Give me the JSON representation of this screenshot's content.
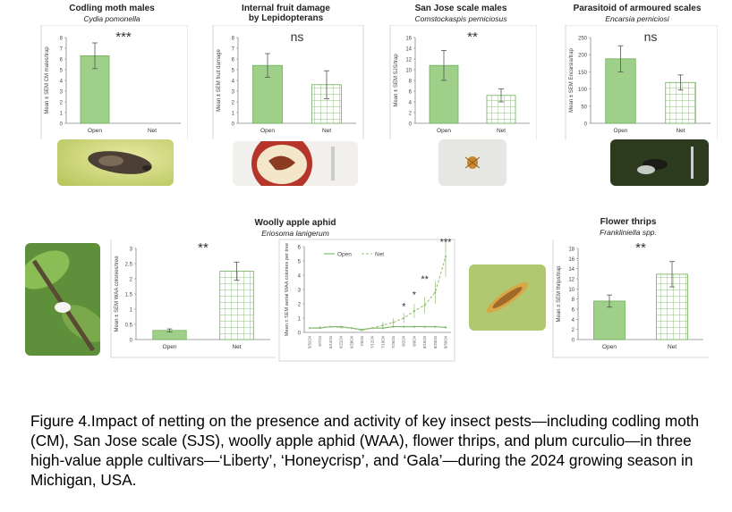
{
  "colors": {
    "open": "#9fd08a",
    "net_fill": "#ffffff",
    "net_grid": "#8cc47a",
    "border": "#6fae5b",
    "axis": "#888888"
  },
  "panels": {
    "codling": {
      "title": "Codling moth males",
      "subtitle": "Cydia pomonella",
      "sig": "***"
    },
    "fruit": {
      "title": "Internal fruit damage",
      "title2": "by Lepidopterans",
      "sig": "ns"
    },
    "sjs": {
      "title": "San Jose scale males",
      "subtitle": "Comstockaspis perniciosus",
      "sig": "**"
    },
    "parasitoid": {
      "title": "Parasitoid of armoured scales",
      "subtitle": "Encarsia perniciosi",
      "sig": "ns"
    },
    "waa": {
      "title": "Woolly apple aphid",
      "subtitle": "Eriosoma lanigerum",
      "sig": "**"
    },
    "thrips": {
      "title": "Flower thrips",
      "subtitle": "Frankliniella spp.",
      "sig": "**"
    }
  },
  "chart_data": [
    {
      "type": "bar",
      "id": "codling",
      "categories": [
        "Open",
        "Net"
      ],
      "values": [
        6.3,
        0
      ],
      "errors": [
        1.2,
        0
      ],
      "ylabel": "Mean ± SEM CM males/trap",
      "ylim": [
        0,
        8
      ],
      "yticks": [
        0,
        1,
        2,
        3,
        4,
        5,
        6,
        7,
        8
      ]
    },
    {
      "type": "bar",
      "id": "fruit",
      "categories": [
        "Open",
        "Net"
      ],
      "values": [
        5.4,
        3.6
      ],
      "errors": [
        1.1,
        1.3
      ],
      "ylabel": "Mean ± SEM fruit damage",
      "ylim": [
        0,
        8
      ],
      "yticks": [
        0,
        1,
        2,
        3,
        4,
        5,
        6,
        7,
        8
      ]
    },
    {
      "type": "bar",
      "id": "sjs",
      "categories": [
        "Open",
        "Net"
      ],
      "values": [
        10.8,
        5.2
      ],
      "errors": [
        2.8,
        1.2
      ],
      "ylabel": "Mean ± SEM SJS/trap",
      "ylim": [
        0,
        16
      ],
      "yticks": [
        0,
        2,
        4,
        6,
        8,
        10,
        12,
        14,
        16
      ]
    },
    {
      "type": "bar",
      "id": "parasitoid",
      "categories": [
        "Open",
        "Net"
      ],
      "values": [
        188,
        119
      ],
      "errors": [
        38,
        22
      ],
      "ylabel": "Mean ± SEM Encarsia/trap",
      "ylim": [
        0,
        250
      ],
      "yticks": [
        0,
        50,
        100,
        150,
        200,
        250
      ]
    },
    {
      "type": "bar",
      "id": "waa",
      "categories": [
        "Open",
        "Net"
      ],
      "values": [
        0.3,
        2.25
      ],
      "errors": [
        0.05,
        0.3
      ],
      "ylabel": "Mean ± SEM WAA colonies/tree",
      "ylim": [
        0,
        3
      ],
      "yticks": [
        0,
        0.5,
        1,
        1.5,
        2,
        2.5,
        3
      ]
    },
    {
      "type": "line",
      "id": "waa_time",
      "x": [
        "5/31/24",
        "6/7/24",
        "6/14/24",
        "6/21/24",
        "6/28/24",
        "7/5/24",
        "7/12/24",
        "7/19/24",
        "7/26/24",
        "8/2/24",
        "8/9/24",
        "8/16/24",
        "8/23/24",
        "8/30/24"
      ],
      "series": [
        {
          "name": "Open",
          "values": [
            0.3,
            0.3,
            0.4,
            0.4,
            0.3,
            0.2,
            0.3,
            0.3,
            0.4,
            0.4,
            0.4,
            0.4,
            0.4,
            0.35
          ]
        },
        {
          "name": "Net",
          "values": [
            0.3,
            0.35,
            0.4,
            0.35,
            0.3,
            0.15,
            0.3,
            0.5,
            0.7,
            1.0,
            1.5,
            1.9,
            2.8,
            5.3
          ]
        }
      ],
      "annotations": [
        "*",
        "*",
        "**",
        "***"
      ],
      "ylabel": "Mean ± SEM aerial WAA colonies per tree",
      "ylim": [
        0,
        6
      ],
      "yticks": [
        0,
        1,
        2,
        3,
        4,
        5,
        6
      ]
    },
    {
      "type": "bar",
      "id": "thrips",
      "categories": [
        "Open",
        "Net"
      ],
      "values": [
        7.6,
        12.9
      ],
      "errors": [
        1.2,
        2.5
      ],
      "ylabel": "Mean ± SEM thrips/trap",
      "ylim": [
        0,
        18
      ],
      "yticks": [
        0,
        2,
        4,
        6,
        8,
        10,
        12,
        14,
        16,
        18
      ]
    }
  ],
  "caption": "Figure 4.Impact of netting on the presence and activity of key insect pests—including codling moth (CM), San Jose scale (SJS), woolly apple aphid (WAA), flower thrips, and plum curculio—in three high-value apple cultivars—‘Liberty’, ‘Honeycrisp’, and ‘Gala’—during the 2024 growing season in Michigan, USA."
}
